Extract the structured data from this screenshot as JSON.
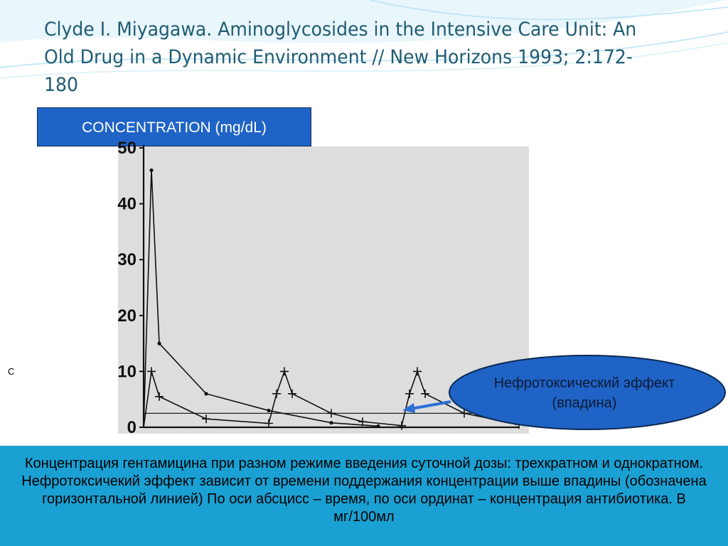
{
  "slide": {
    "title": "Clyde I. Miyagawa. Aminoglycosides in the Intensive Care Unit: An Old Drug in a Dynamic Environment // New Horizons 1993; 2:172-180",
    "concentration_label": "CONCENTRATION (mg/dL)",
    "stray_letter": "C",
    "callout_line1": "Нефротоксический эффект",
    "callout_line2": "(впадина)",
    "caption": "Концентрация гентамицина при разном режиме введения суточной дозы: трехкратном  и однократном. Нефротоксичекий эффект зависит от времени поддержания концентрации выше впадины (обозначена горизонтальной линией) По оси абсцисс – время, по оси ординат – концентрация антибиотика. В мг/100мл",
    "colors": {
      "accent_box": "#1f63c6",
      "bottom_band": "#1aa0d3",
      "title": "#1f5c73",
      "arrow": "#2a6fd6"
    }
  },
  "chart_data": {
    "type": "line",
    "title": "",
    "xlabel": "",
    "ylabel": "",
    "xlim": [
      0,
      24
    ],
    "ylim": [
      0,
      50
    ],
    "y_ticks": [
      "0",
      "10",
      "20",
      "30",
      "40",
      "50"
    ],
    "threshold": 2.5,
    "grid": false,
    "series": [
      {
        "marker": "dot",
        "points": [
          [
            0,
            0
          ],
          [
            0.5,
            46
          ],
          [
            1.0,
            15
          ],
          [
            4.0,
            6
          ],
          [
            8.0,
            3
          ],
          [
            12.0,
            0.8
          ],
          [
            15.0,
            0.2
          ]
        ]
      },
      {
        "marker": "plus",
        "points": [
          [
            0,
            0
          ],
          [
            0.5,
            10
          ],
          [
            1.0,
            5.5
          ],
          [
            4.0,
            1.5
          ],
          [
            8.0,
            0.7
          ],
          [
            8.5,
            6
          ],
          [
            9.0,
            10
          ],
          [
            9.5,
            6
          ],
          [
            12.0,
            2.5
          ],
          [
            14.0,
            1
          ],
          [
            16.5,
            0.3
          ],
          [
            17.0,
            6
          ],
          [
            17.5,
            10
          ],
          [
            18.0,
            6
          ],
          [
            20.5,
            2.5
          ],
          [
            24.0,
            0.5
          ]
        ]
      }
    ]
  }
}
